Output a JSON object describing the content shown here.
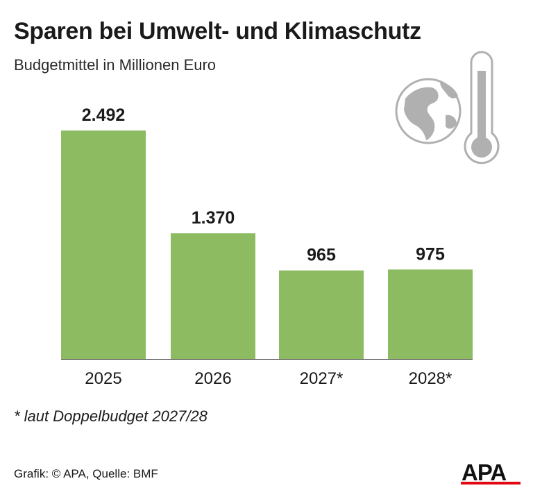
{
  "header": {
    "title": "Sparen bei Umwelt- und Klimaschutz",
    "subtitle": "Budgetmittel in Millionen Euro"
  },
  "chart_data": {
    "type": "bar",
    "title": "Sparen bei Umwelt- und Klimaschutz",
    "subtitle": "Budgetmittel in Millionen Euro",
    "categories": [
      "2025",
      "2026",
      "2027*",
      "2028*"
    ],
    "values": [
      2492,
      1370,
      965,
      975
    ],
    "value_labels": [
      "2.492",
      "1.370",
      "965",
      "975"
    ],
    "ylim": [
      0,
      2700
    ],
    "grid": false,
    "bar_color": "#8dbb62"
  },
  "footnote": "* laut Doppelbudget 2027/28",
  "source": "Grafik: © APA, Quelle: BMF",
  "logo": {
    "text": "APA",
    "accent_color": "#e30613"
  },
  "icons": [
    "globe-icon",
    "thermometer-icon"
  ]
}
